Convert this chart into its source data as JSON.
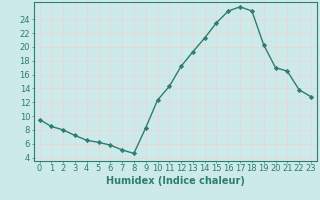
{
  "x": [
    0,
    1,
    2,
    3,
    4,
    5,
    6,
    7,
    8,
    9,
    10,
    11,
    12,
    13,
    14,
    15,
    16,
    17,
    18,
    19,
    20,
    21,
    22,
    23
  ],
  "y": [
    9.5,
    8.5,
    8.0,
    7.2,
    6.5,
    6.2,
    5.8,
    5.1,
    4.6,
    8.3,
    12.3,
    14.3,
    17.2,
    19.3,
    21.3,
    23.5,
    25.2,
    25.8,
    25.2,
    20.3,
    17.0,
    16.5,
    13.8,
    12.8
  ],
  "xlabel": "Humidex (Indice chaleur)",
  "ylabel": "",
  "xlim": [
    -0.5,
    23.5
  ],
  "ylim": [
    3.5,
    26.5
  ],
  "yticks": [
    4,
    6,
    8,
    10,
    12,
    14,
    16,
    18,
    20,
    22,
    24
  ],
  "xticks": [
    0,
    1,
    2,
    3,
    4,
    5,
    6,
    7,
    8,
    9,
    10,
    11,
    12,
    13,
    14,
    15,
    16,
    17,
    18,
    19,
    20,
    21,
    22,
    23
  ],
  "line_color": "#2e7d6e",
  "bg_color": "#cceaea",
  "grid_color": "#e8d8d8",
  "marker": "D",
  "marker_size": 2.2,
  "line_width": 1.0,
  "xlabel_fontsize": 7,
  "tick_fontsize": 6
}
